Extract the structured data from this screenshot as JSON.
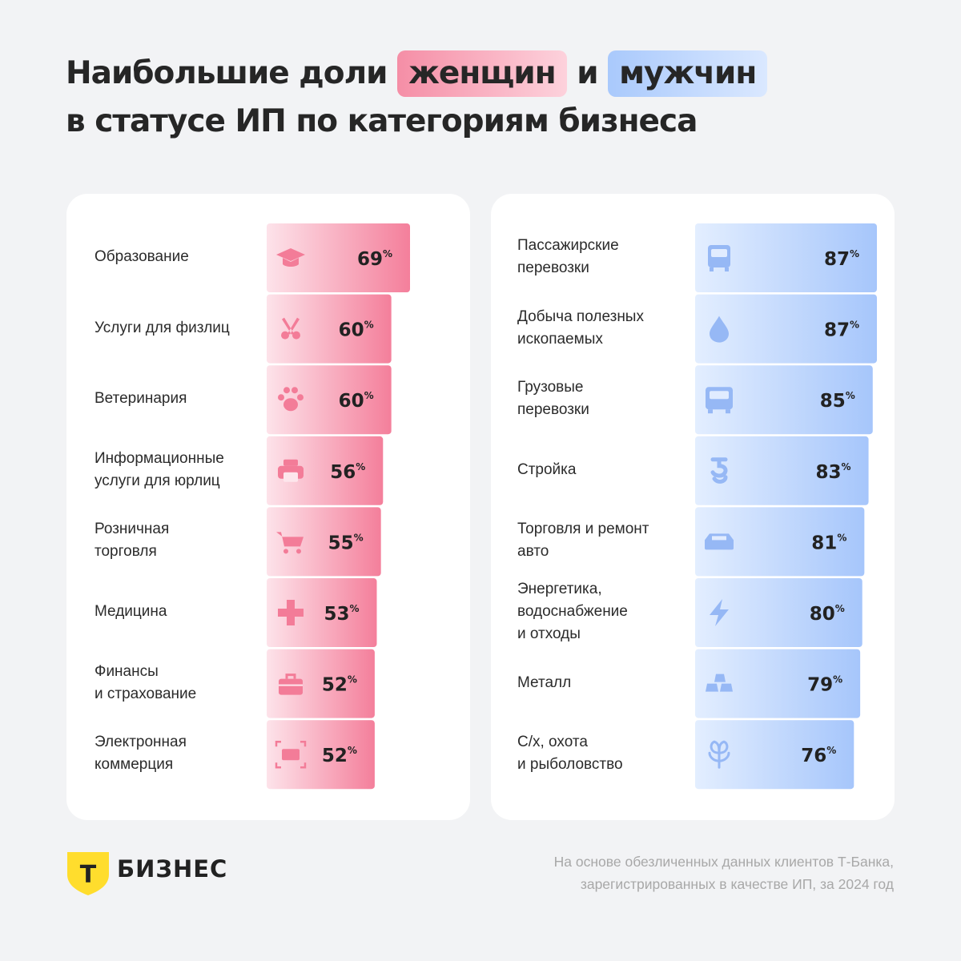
{
  "title": {
    "line1_prefix": "Наибольшие доли",
    "highlight_women": "женщин",
    "connector": "и",
    "highlight_men": "мужчин",
    "line2": "в статусе ИП по категориям бизнеса"
  },
  "colors": {
    "women_dark": "#f47f9b",
    "women_light": "#fde3ea",
    "men_dark": "#a6c6fb",
    "men_light": "#e3eeff",
    "background": "#f2f3f5",
    "card": "#ffffff",
    "logo_yellow": "#ffdd2d"
  },
  "chart_data": [
    {
      "type": "bar",
      "orientation": "horizontal",
      "series": [
        {
          "name": "женщин",
          "values": [
            69,
            60,
            60,
            56,
            55,
            53,
            52,
            52
          ]
        }
      ],
      "categories": [
        "Образование",
        "Услуги для физлиц",
        "Ветеринария",
        "Информационные\nуслуги для юрлиц",
        "Розничная\nторговля",
        "Медицина",
        "Финансы\nи страхование",
        "Электронная\nкоммерция"
      ],
      "icons": [
        "graduation-cap-icon",
        "scissors-icon",
        "paw-icon",
        "printer-icon",
        "shopping-cart-icon",
        "medical-cross-icon",
        "briefcase-icon",
        "credit-card-icon"
      ],
      "unit": "%",
      "xlim": [
        0,
        69
      ]
    },
    {
      "type": "bar",
      "orientation": "horizontal",
      "series": [
        {
          "name": "мужчин",
          "values": [
            87,
            87,
            85,
            83,
            81,
            80,
            79,
            76
          ]
        }
      ],
      "categories": [
        "Пассажирские\nперевозки",
        "Добыча полезных\nископаемых",
        "Грузовые\nперевозки",
        "Стройка",
        "Торговля и ремонт\nавто",
        "Энергетика,\nводоснабжение\nи отходы",
        "Металл",
        "С/х, охота\nи рыболовство"
      ],
      "icons": [
        "bus-icon",
        "oil-drop-icon",
        "truck-icon",
        "crane-hook-icon",
        "car-icon",
        "lightning-icon",
        "metal-ingot-icon",
        "sprout-icon"
      ],
      "unit": "%",
      "xlim": [
        0,
        87
      ]
    }
  ],
  "footer": {
    "brand": "БИЗНЕС",
    "logo_letter": "Т",
    "note": "На основе обезличенных данных клиентов Т-Банка,\nзарегистрированных в качестве ИП, за 2024 год"
  }
}
